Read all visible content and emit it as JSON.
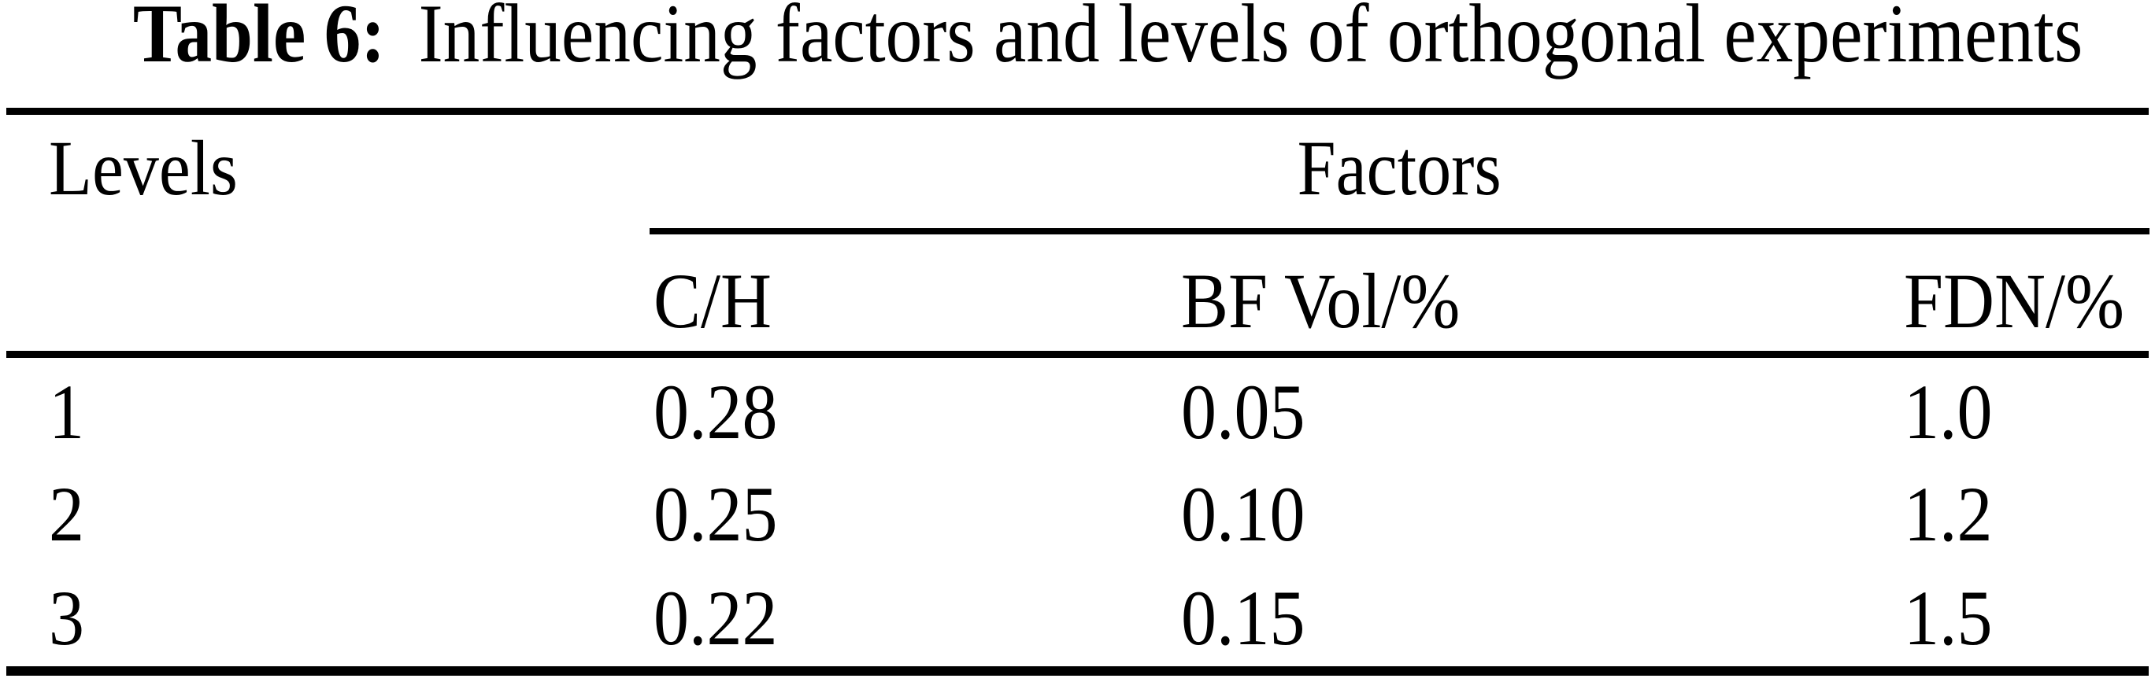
{
  "caption": {
    "label": "Table 6:",
    "text": "Influencing factors and levels of orthogonal experiments"
  },
  "table": {
    "levels_header": "Levels",
    "factors_header": "Factors",
    "columns": [
      "C/H",
      "BF Vol/%",
      "FDN/%"
    ],
    "rows": [
      [
        "1",
        "0.28",
        "0.05",
        "1.0"
      ],
      [
        "2",
        "0.25",
        "0.10",
        "1.2"
      ],
      [
        "3",
        "0.22",
        "0.15",
        "1.5"
      ]
    ]
  },
  "colors": {
    "text": "#000000",
    "background": "#ffffff",
    "rule": "#000000"
  }
}
